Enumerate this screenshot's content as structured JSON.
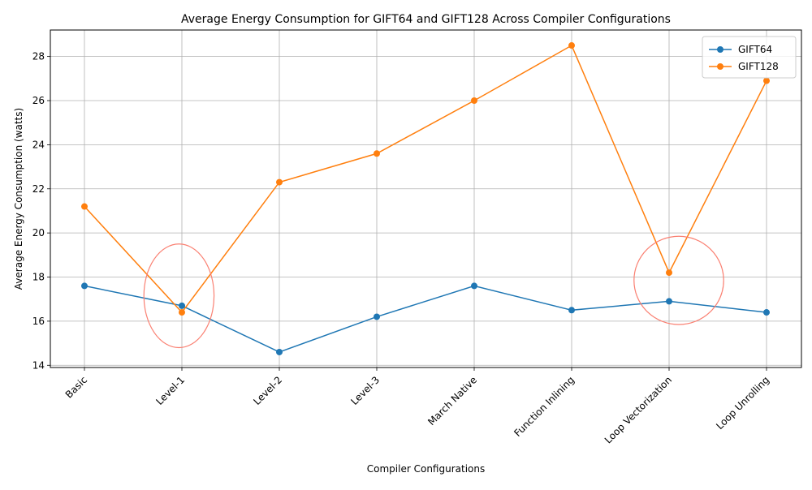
{
  "chart_data": {
    "type": "line",
    "title": "Average Energy Consumption for GIFT64 and GIFT128 Across Compiler Configurations",
    "xlabel": "Compiler Configurations",
    "ylabel": "Average Energy Consumption (watts)",
    "categories": [
      "Basic",
      "Level-1",
      "Level-2",
      "Level-3",
      "March Native",
      "Function Inlining",
      "Loop Vectorization",
      "Loop Unrolling"
    ],
    "series": [
      {
        "name": "GIFT64",
        "color": "#1f77b4",
        "values": [
          17.6,
          16.7,
          14.6,
          16.2,
          17.6,
          16.5,
          16.9,
          16.4
        ]
      },
      {
        "name": "GIFT128",
        "color": "#ff7f0e",
        "values": [
          21.2,
          16.4,
          22.3,
          23.6,
          26.0,
          28.5,
          18.2,
          26.9
        ]
      }
    ],
    "ylim": [
      13.9,
      29.2
    ],
    "yticks": [
      14,
      16,
      18,
      20,
      22,
      24,
      26,
      28
    ],
    "grid": true,
    "legend_position": "top-right",
    "marker": "circle",
    "annotations": [
      {
        "type": "ellipse",
        "category": "Level-1",
        "cx": 0.97,
        "cy": 17.15,
        "rx": 0.36,
        "ry": 2.35,
        "color": "#fa8072"
      },
      {
        "type": "ellipse",
        "category": "Loop Vectorization",
        "cx": 6.1,
        "cy": 17.85,
        "rx": 0.46,
        "ry": 2.0,
        "color": "#fa8072"
      }
    ]
  }
}
